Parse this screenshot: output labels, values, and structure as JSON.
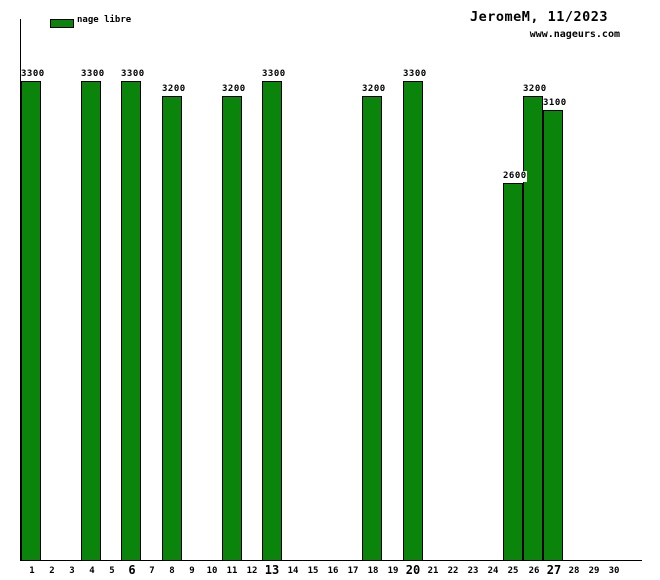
{
  "header": {
    "title": "JeromeM, 11/2023",
    "site": "www.nageurs.com"
  },
  "legend": {
    "label": "nage libre",
    "swatch_color": "#0a840a"
  },
  "colors": {
    "bar_fill": "#0a840a",
    "bar_border": "#000000",
    "axis": "#000000",
    "text": "#000000",
    "background": "#ffffff"
  },
  "chart_data": {
    "type": "bar",
    "title": "JeromeM, 11/2023",
    "watermark": "www.nageurs.com",
    "xlabel": "",
    "ylabel": "",
    "grid": false,
    "legend_position": "top-left",
    "ylim": [
      0,
      3300
    ],
    "categories": [
      "1",
      "2",
      "3",
      "4",
      "5",
      "6",
      "7",
      "8",
      "9",
      "10",
      "11",
      "12",
      "13",
      "14",
      "15",
      "16",
      "17",
      "18",
      "19",
      "20",
      "21",
      "22",
      "23",
      "24",
      "25",
      "26",
      "27",
      "28",
      "29",
      "30"
    ],
    "bold_categories": [
      "6",
      "13",
      "20",
      "27"
    ],
    "series": [
      {
        "name": "nage libre",
        "color": "#0a840a",
        "points": [
          {
            "day": 1,
            "value": 3300
          },
          {
            "day": 4,
            "value": 3300
          },
          {
            "day": 6,
            "value": 3300
          },
          {
            "day": 8,
            "value": 3200
          },
          {
            "day": 11,
            "value": 3200
          },
          {
            "day": 13,
            "value": 3300
          },
          {
            "day": 18,
            "value": 3200
          },
          {
            "day": 20,
            "value": 3300
          },
          {
            "day": 25,
            "value": 2600
          },
          {
            "day": 26,
            "value": 3200
          },
          {
            "day": 27,
            "value": 3100
          }
        ]
      }
    ]
  }
}
